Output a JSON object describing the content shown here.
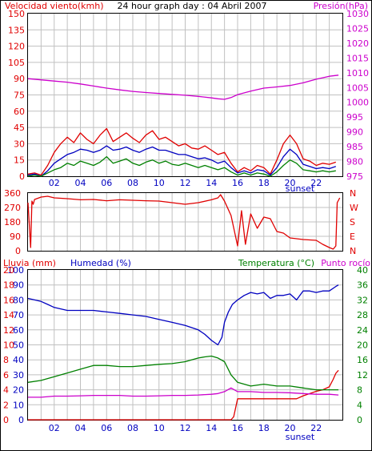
{
  "colors": {
    "wind": "#e00000",
    "wind_avg": "#0000c0",
    "wind_gust": "#008000",
    "pressure": "#cc00cc",
    "direction": "#e00000",
    "rain": "#e00000",
    "humidity": "#0000c0",
    "temperature": "#008000",
    "dewpoint": "#cc00cc",
    "tick_blue": "#0000c0",
    "grid": "#c0c0c0"
  },
  "chart_data": [
    {
      "type": "line",
      "title": "24 hour graph day : 04 Abril 2007",
      "left_label": "Velocidad viento(kmh)",
      "right_label": "Presión(hPa)",
      "x_ticks": [
        "02",
        "04",
        "06",
        "08",
        "10",
        "12",
        "14",
        "16",
        "18",
        "20",
        "22"
      ],
      "x_annotation": "sunset",
      "y_left_ticks": [
        "0",
        "15",
        "30",
        "45",
        "60",
        "75",
        "90",
        "105",
        "120",
        "135",
        "150"
      ],
      "y_right_ticks": [
        "975",
        "980",
        "985",
        "990",
        "995",
        "1000",
        "1005",
        "1010",
        "1015",
        "1020",
        "1025",
        "1030"
      ],
      "ylim_left": [
        0,
        150
      ],
      "ylim_right": [
        975,
        1030
      ],
      "series": [
        {
          "axis": "left",
          "colorKey": "wind",
          "x": [
            0,
            0.5,
            1,
            1.5,
            2,
            2.5,
            3,
            3.5,
            4,
            4.5,
            5,
            5.5,
            6,
            6.5,
            7,
            7.5,
            8,
            8.5,
            9,
            9.5,
            10,
            10.5,
            11,
            11.5,
            12,
            12.5,
            13,
            13.5,
            14,
            14.5,
            15,
            15.5,
            16,
            16.5,
            17,
            17.5,
            18,
            18.5,
            19,
            19.5,
            20,
            20.5,
            21,
            21.5,
            22,
            22.5,
            23,
            23.5
          ],
          "values": [
            2,
            3,
            1,
            10,
            22,
            30,
            36,
            31,
            40,
            34,
            30,
            38,
            44,
            32,
            36,
            40,
            35,
            31,
            38,
            42,
            34,
            36,
            32,
            28,
            30,
            26,
            25,
            28,
            24,
            20,
            22,
            12,
            4,
            8,
            5,
            10,
            8,
            2,
            15,
            30,
            38,
            30,
            16,
            14,
            10,
            12,
            11,
            13
          ]
        },
        {
          "axis": "left",
          "colorKey": "wind_avg",
          "x": [
            0,
            0.5,
            1,
            1.5,
            2,
            2.5,
            3,
            3.5,
            4,
            4.5,
            5,
            5.5,
            6,
            6.5,
            7,
            7.5,
            8,
            8.5,
            9,
            9.5,
            10,
            10.5,
            11,
            11.5,
            12,
            12.5,
            13,
            13.5,
            14,
            14.5,
            15,
            15.5,
            16,
            16.5,
            17,
            17.5,
            18,
            18.5,
            19,
            19.5,
            20,
            20.5,
            21,
            21.5,
            22,
            22.5,
            23,
            23.5
          ],
          "values": [
            1,
            2,
            0,
            5,
            12,
            16,
            20,
            22,
            25,
            24,
            22,
            24,
            28,
            24,
            25,
            27,
            24,
            22,
            25,
            27,
            24,
            24,
            22,
            20,
            20,
            18,
            16,
            17,
            15,
            12,
            14,
            8,
            3,
            5,
            3,
            6,
            5,
            1,
            8,
            18,
            25,
            20,
            11,
            9,
            7,
            8,
            7,
            9
          ]
        },
        {
          "axis": "left",
          "colorKey": "wind_gust",
          "x": [
            0,
            0.5,
            1,
            1.5,
            2,
            2.5,
            3,
            3.5,
            4,
            4.5,
            5,
            5.5,
            6,
            6.5,
            7,
            7.5,
            8,
            8.5,
            9,
            9.5,
            10,
            10.5,
            11,
            11.5,
            12,
            12.5,
            13,
            13.5,
            14,
            14.5,
            15,
            15.5,
            16,
            16.5,
            17,
            17.5,
            18,
            18.5,
            19,
            19.5,
            20,
            20.5,
            21,
            21.5,
            22,
            22.5,
            23,
            23.5
          ],
          "values": [
            0,
            1,
            0,
            3,
            6,
            8,
            12,
            10,
            14,
            12,
            10,
            13,
            18,
            12,
            14,
            16,
            12,
            10,
            13,
            15,
            12,
            14,
            11,
            10,
            12,
            10,
            8,
            10,
            8,
            6,
            8,
            4,
            1,
            3,
            1,
            3,
            2,
            0,
            4,
            10,
            15,
            12,
            6,
            5,
            4,
            5,
            4,
            5
          ]
        },
        {
          "axis": "right",
          "colorKey": "pressure",
          "x": [
            0,
            1,
            2,
            3,
            4,
            5,
            6,
            7,
            8,
            9,
            10,
            11,
            12,
            13,
            14,
            14.5,
            15,
            15.5,
            16,
            17,
            18,
            19,
            20,
            21,
            22,
            23,
            23.7
          ],
          "values": [
            1008,
            1007.6,
            1007.2,
            1006.8,
            1006.2,
            1005.5,
            1004.8,
            1004.2,
            1003.7,
            1003.3,
            1003,
            1002.7,
            1002.4,
            1002,
            1001.5,
            1001.2,
            1001,
            1001.6,
            1002.6,
            1003.8,
            1004.8,
            1005.2,
            1005.7,
            1006.6,
            1007.8,
            1008.8,
            1009.2
          ]
        }
      ]
    },
    {
      "type": "line",
      "y_left_ticks": [
        "0",
        "90",
        "180",
        "270",
        "360"
      ],
      "y_right_ticks": [
        "N",
        "E",
        "S",
        "W",
        "N"
      ],
      "ylim": [
        0,
        360
      ],
      "series": [
        {
          "colorKey": "direction",
          "x": [
            0,
            0.2,
            0.3,
            0.4,
            0.5,
            1,
            1.5,
            2,
            3,
            4,
            5,
            6,
            7,
            8,
            9,
            10,
            11,
            12,
            13,
            14,
            14.5,
            14.7,
            15,
            15.5,
            16,
            16.3,
            16.6,
            17,
            17.5,
            18,
            18.5,
            19,
            19.5,
            20,
            21,
            22,
            22.5,
            23,
            23.3,
            23.5,
            23.6,
            23.8
          ],
          "values": [
            300,
            20,
            310,
            290,
            320,
            335,
            340,
            330,
            325,
            318,
            320,
            312,
            318,
            315,
            312,
            310,
            300,
            290,
            300,
            318,
            330,
            350,
            310,
            220,
            30,
            250,
            40,
            230,
            140,
            210,
            200,
            120,
            110,
            80,
            70,
            65,
            40,
            20,
            10,
            30,
            300,
            330
          ]
        }
      ]
    },
    {
      "type": "line",
      "left_label": "Lluvia (mm)",
      "left_label2": "Humedad (%)",
      "right_label": "Temperatura (°C)",
      "right_label2": "Punto rocío",
      "x_ticks": [
        "02",
        "04",
        "06",
        "08",
        "10",
        "12",
        "14",
        "16",
        "18",
        "20",
        "22"
      ],
      "x_annotation": "sunset",
      "y_left_ticks": [
        "0",
        "10",
        "20",
        "30",
        "40",
        "50",
        "60",
        "70",
        "80",
        "90",
        "100"
      ],
      "y_rain_ticks": [
        "0",
        "2",
        "4",
        "6",
        "8",
        "10",
        "12",
        "14",
        "16",
        "18",
        "20"
      ],
      "y_right_ticks": [
        "0",
        "4",
        "8",
        "12",
        "16",
        "20",
        "24",
        "28",
        "32",
        "36",
        "40"
      ],
      "ylim_left": [
        0,
        100
      ],
      "ylim_right": [
        0,
        40
      ],
      "series": [
        {
          "axis": "left",
          "colorKey": "humidity",
          "x": [
            0,
            1,
            1.5,
            2,
            3,
            4,
            5,
            6,
            7,
            8,
            9,
            10,
            11,
            12,
            13,
            13.5,
            14,
            14.5,
            14.8,
            15,
            15.3,
            15.6,
            16,
            16.5,
            17,
            17.5,
            18,
            18.5,
            19,
            19.5,
            20,
            20.5,
            21,
            21.5,
            22,
            22.5,
            23,
            23.5,
            23.7
          ],
          "values": [
            81,
            79,
            77,
            75,
            73,
            73,
            73,
            72,
            71,
            70,
            69,
            67,
            65,
            63,
            60,
            57,
            53,
            50,
            55,
            65,
            72,
            77,
            80,
            83,
            85,
            84,
            85,
            81,
            83,
            83,
            84,
            80,
            86,
            86,
            85,
            86,
            86,
            89,
            90
          ]
        },
        {
          "axis": "left",
          "colorKey": "rain",
          "x": [
            0,
            15.5,
            15.7,
            16,
            16.5,
            17,
            18,
            19,
            20,
            20.5,
            21,
            22,
            22.5,
            23,
            23.3,
            23.5,
            23.7
          ],
          "values": [
            0,
            0,
            2,
            14,
            14,
            14,
            14,
            14,
            14,
            14,
            16,
            19,
            20,
            22,
            27,
            31,
            33
          ]
        },
        {
          "axis": "right",
          "colorKey": "temperature",
          "x": [
            0,
            1,
            2,
            3,
            4,
            5,
            6,
            7,
            8,
            9,
            10,
            11,
            12,
            13,
            13.5,
            14,
            14.5,
            15,
            15.5,
            16,
            17,
            18,
            19,
            20,
            21,
            22,
            23,
            23.7
          ],
          "values": [
            10,
            10.5,
            11.5,
            12.5,
            13.5,
            14.5,
            14.5,
            14.2,
            14.2,
            14.5,
            14.8,
            15,
            15.5,
            16.5,
            16.8,
            17,
            16.5,
            15.5,
            12,
            10,
            9,
            9.5,
            9,
            9,
            8.5,
            8,
            8,
            8
          ]
        },
        {
          "axis": "right",
          "colorKey": "dewpoint",
          "x": [
            0,
            1,
            2,
            3,
            4,
            5,
            6,
            7,
            8,
            9,
            10,
            11,
            12,
            13,
            14,
            14.5,
            15,
            15.5,
            16,
            17,
            18,
            19,
            20,
            21,
            22,
            23,
            23.7
          ],
          "values": [
            6,
            6,
            6.3,
            6.3,
            6.4,
            6.5,
            6.5,
            6.5,
            6.3,
            6.3,
            6.4,
            6.5,
            6.5,
            6.6,
            6.8,
            7,
            7.5,
            8.5,
            7.5,
            7.5,
            7.3,
            7.3,
            7.2,
            7,
            6.8,
            6.8,
            6.6
          ]
        }
      ]
    }
  ]
}
